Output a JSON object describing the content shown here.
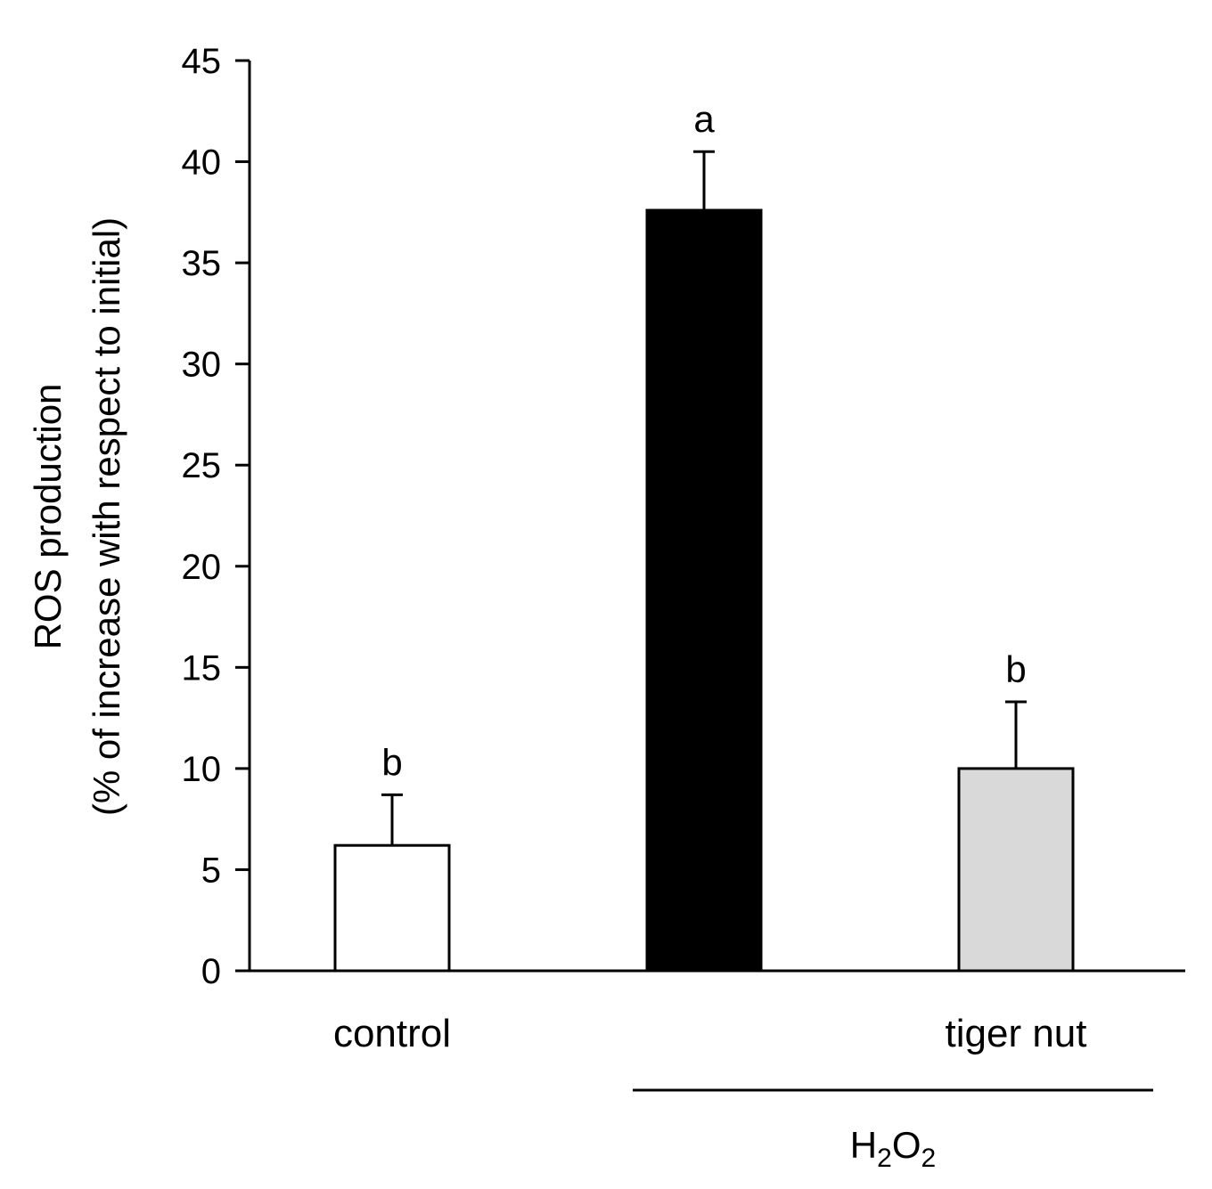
{
  "chart_data": {
    "type": "bar",
    "categories": [
      "control",
      "",
      "tiger nut"
    ],
    "values": [
      6.2,
      37.6,
      10.0
    ],
    "errors": [
      2.5,
      2.9,
      3.3
    ],
    "significance_letters": [
      "b",
      "a",
      "b"
    ],
    "bar_colors": [
      "#ffffff",
      "#000000",
      "#d9d9d9"
    ],
    "ylabel": "ROS production",
    "ylabel_line2": "(% of increase with respect to initial)",
    "ylim": [
      0,
      45
    ],
    "yticks": [
      0,
      5,
      10,
      15,
      20,
      25,
      30,
      35,
      40,
      45
    ],
    "grid": false,
    "group_label": {
      "text": "H2O2",
      "base1": "H",
      "sub1": "2",
      "base2": "O",
      "sub2": "2",
      "spans_categories": [
        1,
        2
      ]
    }
  }
}
